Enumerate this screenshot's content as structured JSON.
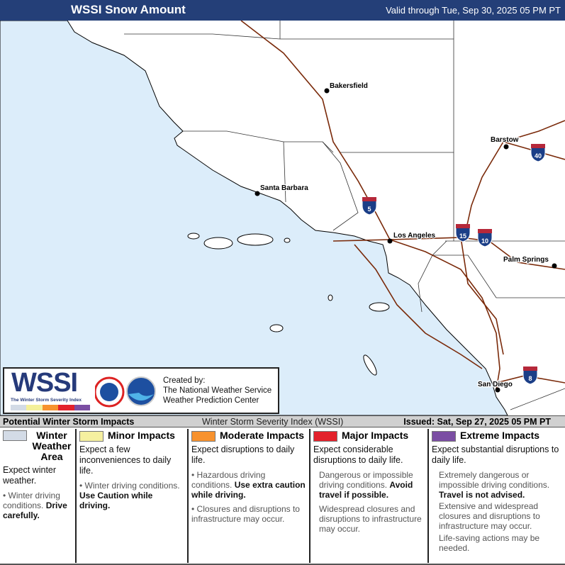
{
  "header": {
    "title": "WSSI Snow Amount",
    "valid": "Valid through Tue, Sep 30, 2025 05 PM PT"
  },
  "map": {
    "ocean_color": "#dcedfa",
    "land_color": "#ffffff",
    "road_color": "#7a2a0a",
    "cities": [
      {
        "name": "Bakersfield"
      },
      {
        "name": "Barstow"
      },
      {
        "name": "Santa Barbara"
      },
      {
        "name": "Los Angeles"
      },
      {
        "name": "Palm Springs"
      },
      {
        "name": "San Diego"
      }
    ],
    "interstates": [
      "5",
      "15",
      "10",
      "40",
      "8"
    ]
  },
  "logo": {
    "wssi": "WSSI",
    "tagline": "The Winter Storm Severity Index",
    "created_by": "Created by:",
    "org1": "The National Weather Service",
    "org2": "Weather Prediction Center",
    "colors": [
      "#d3dbe6",
      "#f4f09a",
      "#f7922e",
      "#e3212b",
      "#7b4ea3"
    ]
  },
  "strip": {
    "left": "Potential Winter Storm Impacts",
    "middle": "Winter Storm Severity Index (WSSI)",
    "issued": "Issued: Sat, Sep 27, 2025 05 PM PT"
  },
  "legend": [
    {
      "title": "Winter Weather Area",
      "color": "#d3dbe6",
      "expect": "Expect winter weather.",
      "b1": "Winter driving conditions.",
      "b1_bold": "Drive carefully."
    },
    {
      "title": "Minor Impacts",
      "color": "#f6f0a0",
      "expect": "Expect a few inconveniences to daily life.",
      "b1": "Winter driving conditions.",
      "b1_bold": "Use Caution while driving."
    },
    {
      "title": "Moderate Impacts",
      "color": "#f7922e",
      "expect": "Expect disruptions to daily life.",
      "b1": "Hazardous driving conditions.",
      "b1_bold": "Use extra caution while driving.",
      "b2": "Closures and disruptions to infrastructure may occur."
    },
    {
      "title": "Major Impacts",
      "color": "#e3212b",
      "expect": "Expect considerable disruptions to daily life.",
      "b1": "Dangerous or impossible driving conditions.",
      "b1_bold": "Avoid travel if possible.",
      "b2": "Widespread closures and disruptions to infrastructure may occur."
    },
    {
      "title": "Extreme Impacts",
      "color": "#7b4ea3",
      "expect": "Expect substantial disruptions to daily life.",
      "b1": "Extremely dangerous or impossible driving conditions.",
      "b1_bold": "Travel is not advised.",
      "b2": "Extensive and widespread closures and disruptions to infrastructure may occur.",
      "b3": "Life-saving actions may be needed."
    }
  ]
}
